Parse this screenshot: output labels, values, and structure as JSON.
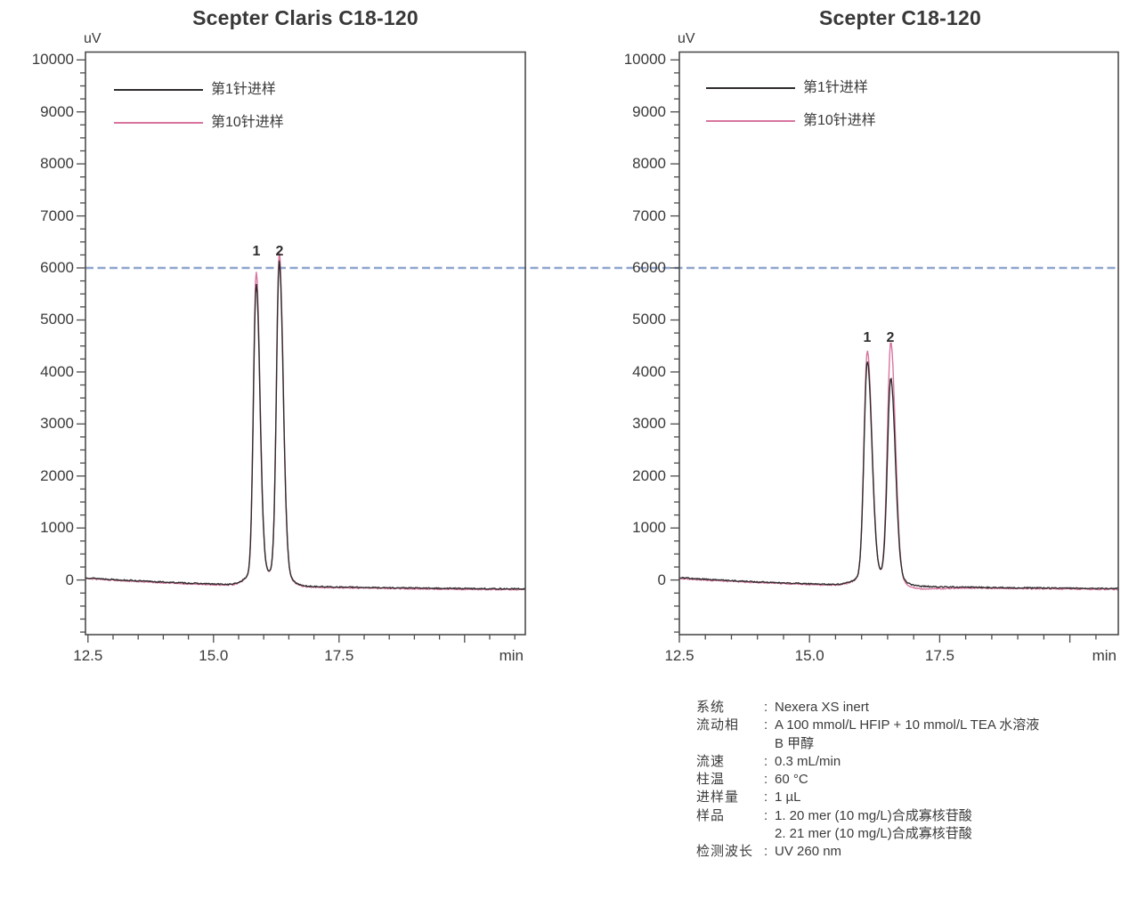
{
  "chart_data": [
    {
      "type": "line",
      "title": "Scepter Claris C18-120",
      "ylabel": "uV",
      "xlabel": "min",
      "xlim": [
        12.45,
        21.21
      ],
      "ylim": [
        -1050,
        10150
      ],
      "x_major_ticks": [
        12.5,
        15.0,
        17.5,
        20.0
      ],
      "x_tick_labels": [
        "12.5",
        "15.0",
        "17.5"
      ],
      "x_minor_step": 0.5,
      "y_major_ticks": [
        0,
        1000,
        2000,
        3000,
        4000,
        5000,
        6000,
        7000,
        8000,
        9000,
        10000
      ],
      "y_minor_step": 250,
      "grid": false,
      "legend_position": "upper-left-inside",
      "legend": [
        "第1针进样",
        "第10针进样"
      ],
      "reference_line": {
        "value_uv": 6000,
        "style": "dashed",
        "color": "#8fa5ce"
      },
      "baseline_uv": {
        "start": 45,
        "end": -190
      },
      "noise_uv": 11,
      "inj10_offset_uv": -14,
      "peaks": [
        {
          "label": "1",
          "retention_min": 15.85,
          "fwhm_min": 0.145,
          "height_uv_inj1": 5430,
          "height_uv_inj10": 5660
        },
        {
          "label": "2",
          "retention_min": 16.31,
          "fwhm_min": 0.15,
          "height_uv_inj1": 5855,
          "height_uv_inj10": 6010
        }
      ]
    },
    {
      "type": "line",
      "title": "Scepter C18-120",
      "ylabel": "uV",
      "xlabel": "min",
      "xlim": [
        12.5,
        20.93
      ],
      "ylim": [
        -1050,
        10150
      ],
      "x_major_ticks": [
        12.5,
        15.0,
        17.5,
        20.0
      ],
      "x_tick_labels": [
        "12.5",
        "15.0",
        "17.5"
      ],
      "x_minor_step": 0.5,
      "y_major_ticks": [
        0,
        1000,
        2000,
        3000,
        4000,
        5000,
        6000,
        7000,
        8000,
        9000,
        10000
      ],
      "y_minor_step": 250,
      "grid": false,
      "legend_position": "upper-left-inside",
      "legend": [
        "第1针进样",
        "第10针进样"
      ],
      "reference_line": {
        "value_uv": 6000,
        "style": "dashed",
        "color": "#8fa5ce"
      },
      "baseline_uv": {
        "start": 45,
        "end": -185
      },
      "noise_uv": 11,
      "inj10_offset_uv": -14,
      "inj10_dip": {
        "center_min": 17.05,
        "sigma_min": 0.45,
        "depth_uv": 40
      },
      "peaks": [
        {
          "label": "1",
          "retention_min": 16.11,
          "fwhm_min": 0.17,
          "height_uv_inj1": 4000,
          "height_uv_inj10": 4185
        },
        {
          "label": "2",
          "retention_min": 16.56,
          "fwhm_min": 0.17,
          "height_uv_inj1": 3690,
          "height_uv_inj10": 4360
        }
      ]
    }
  ],
  "series_styles": [
    {
      "name": "第1针进样",
      "color": "#2f2b2c"
    },
    {
      "name": "第10针进样",
      "color": "#d8759f"
    }
  ],
  "axis_color": "#4c4c4c",
  "info": {
    "rows": [
      {
        "label": "系统",
        "colon": ":",
        "value": "Nexera XS inert"
      },
      {
        "label": "流动相",
        "colon": ":",
        "value": "A 100 mmol/L HFIP + 10 mmol/L TEA 水溶液"
      },
      {
        "label": "",
        "colon": "",
        "value": "B 甲醇"
      },
      {
        "label": "流速",
        "colon": ":",
        "value": "0.3 mL/min"
      },
      {
        "label": "柱温",
        "colon": ":",
        "value": "60 °C"
      },
      {
        "label": "进样量",
        "colon": ":",
        "value": "1 µL"
      },
      {
        "label": "样品",
        "colon": ":",
        "value": "1. 20 mer (10 mg/L)合成寡核苷酸"
      },
      {
        "label": "",
        "colon": "",
        "value": "2. 21 mer (10 mg/L)合成寡核苷酸"
      },
      {
        "label": "检测波长",
        "colon": ":",
        "value": "UV 260 nm"
      }
    ]
  }
}
